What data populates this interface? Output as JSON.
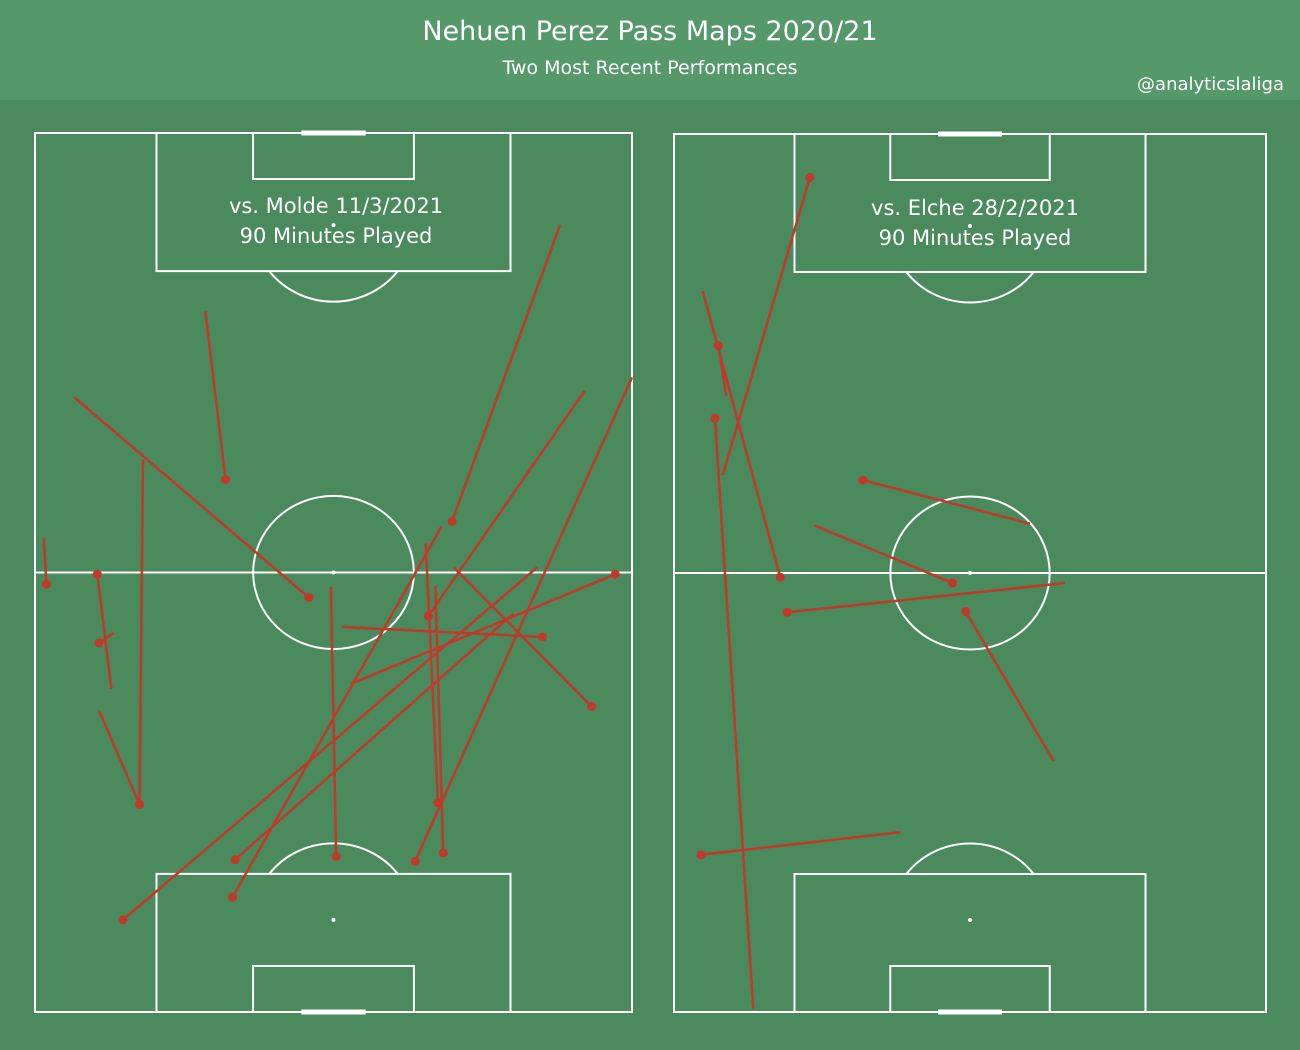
{
  "header": {
    "title": "Nehuen Perez Pass Maps 2020/21",
    "subtitle": "Two Most Recent Performances",
    "handle": "@analyticslaliga"
  },
  "colors": {
    "background": "#4a8a5c",
    "header": "#55996b",
    "lines": "#ffffff",
    "successful_pass": "#1f3fd6",
    "unsuccessful_pass": "#c0392b"
  },
  "chart_data": [
    {
      "type": "scatter",
      "match_label": "vs. Molde 11/3/2021",
      "minutes_label": "90 Minutes Played",
      "pitch": {
        "length": 105,
        "width": 68
      },
      "passes": [
        {
          "x1": 18,
          "y1": 43.3,
          "x2": 75.8,
          "y2": 68,
          "outcome": "unsuccessful"
        },
        {
          "x1": 58.6,
          "y1": 47.5,
          "x2": 94,
          "y2": 59.8,
          "outcome": "unsuccessful"
        },
        {
          "x1": 47.3,
          "y1": 44.8,
          "x2": 74.2,
          "y2": 62.6,
          "outcome": "unsuccessful"
        },
        {
          "x1": 18.2,
          "y1": 22.8,
          "x2": 47.6,
          "y2": 54.5,
          "outcome": "unsuccessful"
        },
        {
          "x1": 19.0,
          "y1": 46.5,
          "x2": 50.9,
          "y2": 45.6,
          "outcome": "unsuccessful"
        },
        {
          "x1": 13.7,
          "y1": 22.5,
          "x2": 58.0,
          "y2": 46.3,
          "outcome": "unsuccessful"
        },
        {
          "x1": 25.0,
          "y1": 45.9,
          "x2": 56.0,
          "y2": 44.5,
          "outcome": "unsuccessful"
        },
        {
          "x1": 11.0,
          "y1": 10.0,
          "x2": 53.1,
          "y2": 57.2,
          "outcome": "unsuccessful"
        },
        {
          "x1": 18.6,
          "y1": 34.3,
          "x2": 50.8,
          "y2": 33.7,
          "outcome": "unsuccessful"
        },
        {
          "x1": 44.1,
          "y1": 7.3,
          "x2": 45.3,
          "y2": 9.0,
          "outcome": "unsuccessful"
        },
        {
          "x1": 24.8,
          "y1": 11.9,
          "x2": 66.0,
          "y2": 12.3,
          "outcome": "unsuccessful"
        },
        {
          "x1": 24.8,
          "y1": 11.9,
          "x2": 36.0,
          "y2": 7.3,
          "outcome": "unsuccessful"
        },
        {
          "x1": 49.5,
          "y1": 31.2,
          "x2": 73.4,
          "y2": 4.5,
          "outcome": "unsuccessful"
        },
        {
          "x1": 36.5,
          "y1": 63.4,
          "x2": 53.1,
          "y2": 47.7,
          "outcome": "unsuccessful"
        },
        {
          "x1": 51.1,
          "y1": 1.3,
          "x2": 56.6,
          "y2": 1.0,
          "outcome": "unsuccessful"
        },
        {
          "x1": 52.3,
          "y1": 7.1,
          "x2": 38.6,
          "y2": 8.7,
          "outcome": "unsuccessful"
        },
        {
          "x1": 44.8,
          "y1": 57.8,
          "x2": 46.0,
          "y2": 34.9,
          "outcome": "unsuccessful"
        },
        {
          "x1": 52.3,
          "y1": 66.1,
          "x2": 39.2,
          "y2": 36.0,
          "outcome": "unsuccessful"
        },
        {
          "x1": 63.6,
          "y1": 21.7,
          "x2": 83.7,
          "y2": 19.4,
          "outcome": "unsuccessful"
        }
      ]
    },
    {
      "type": "scatter",
      "match_label": "vs. Elche 28/2/2021",
      "minutes_label": "90 Minutes Played",
      "pitch": {
        "length": 105,
        "width": 68
      },
      "passes": [
        {
          "x1": 79.7,
          "y1": 5.1,
          "x2": 73.7,
          "y2": 6.0,
          "outcome": "unsuccessful"
        },
        {
          "x1": 52.0,
          "y1": 12.2,
          "x2": 86.2,
          "y2": 3.3,
          "outcome": "unsuccessful"
        },
        {
          "x1": 71.0,
          "y1": 4.7,
          "x2": 0.4,
          "y2": 9.1,
          "outcome": "unsuccessful"
        },
        {
          "x1": 47.9,
          "y1": 33.5,
          "x2": 30.0,
          "y2": 43.6,
          "outcome": "unsuccessful"
        },
        {
          "x1": 99.8,
          "y1": 15.6,
          "x2": 64.2,
          "y2": 5.6,
          "outcome": "unsuccessful"
        },
        {
          "x1": 51.3,
          "y1": 32.0,
          "x2": 58.2,
          "y2": 16.1,
          "outcome": "unsuccessful"
        },
        {
          "x1": 47.8,
          "y1": 13.0,
          "x2": 51.3,
          "y2": 44.9,
          "outcome": "unsuccessful"
        },
        {
          "x1": 63.6,
          "y1": 21.7,
          "x2": 58.4,
          "y2": 40.9,
          "outcome": "unsuccessful"
        },
        {
          "x1": 18.8,
          "y1": 3.1,
          "x2": 21.5,
          "y2": 26.0,
          "outcome": "unsuccessful"
        }
      ]
    }
  ]
}
